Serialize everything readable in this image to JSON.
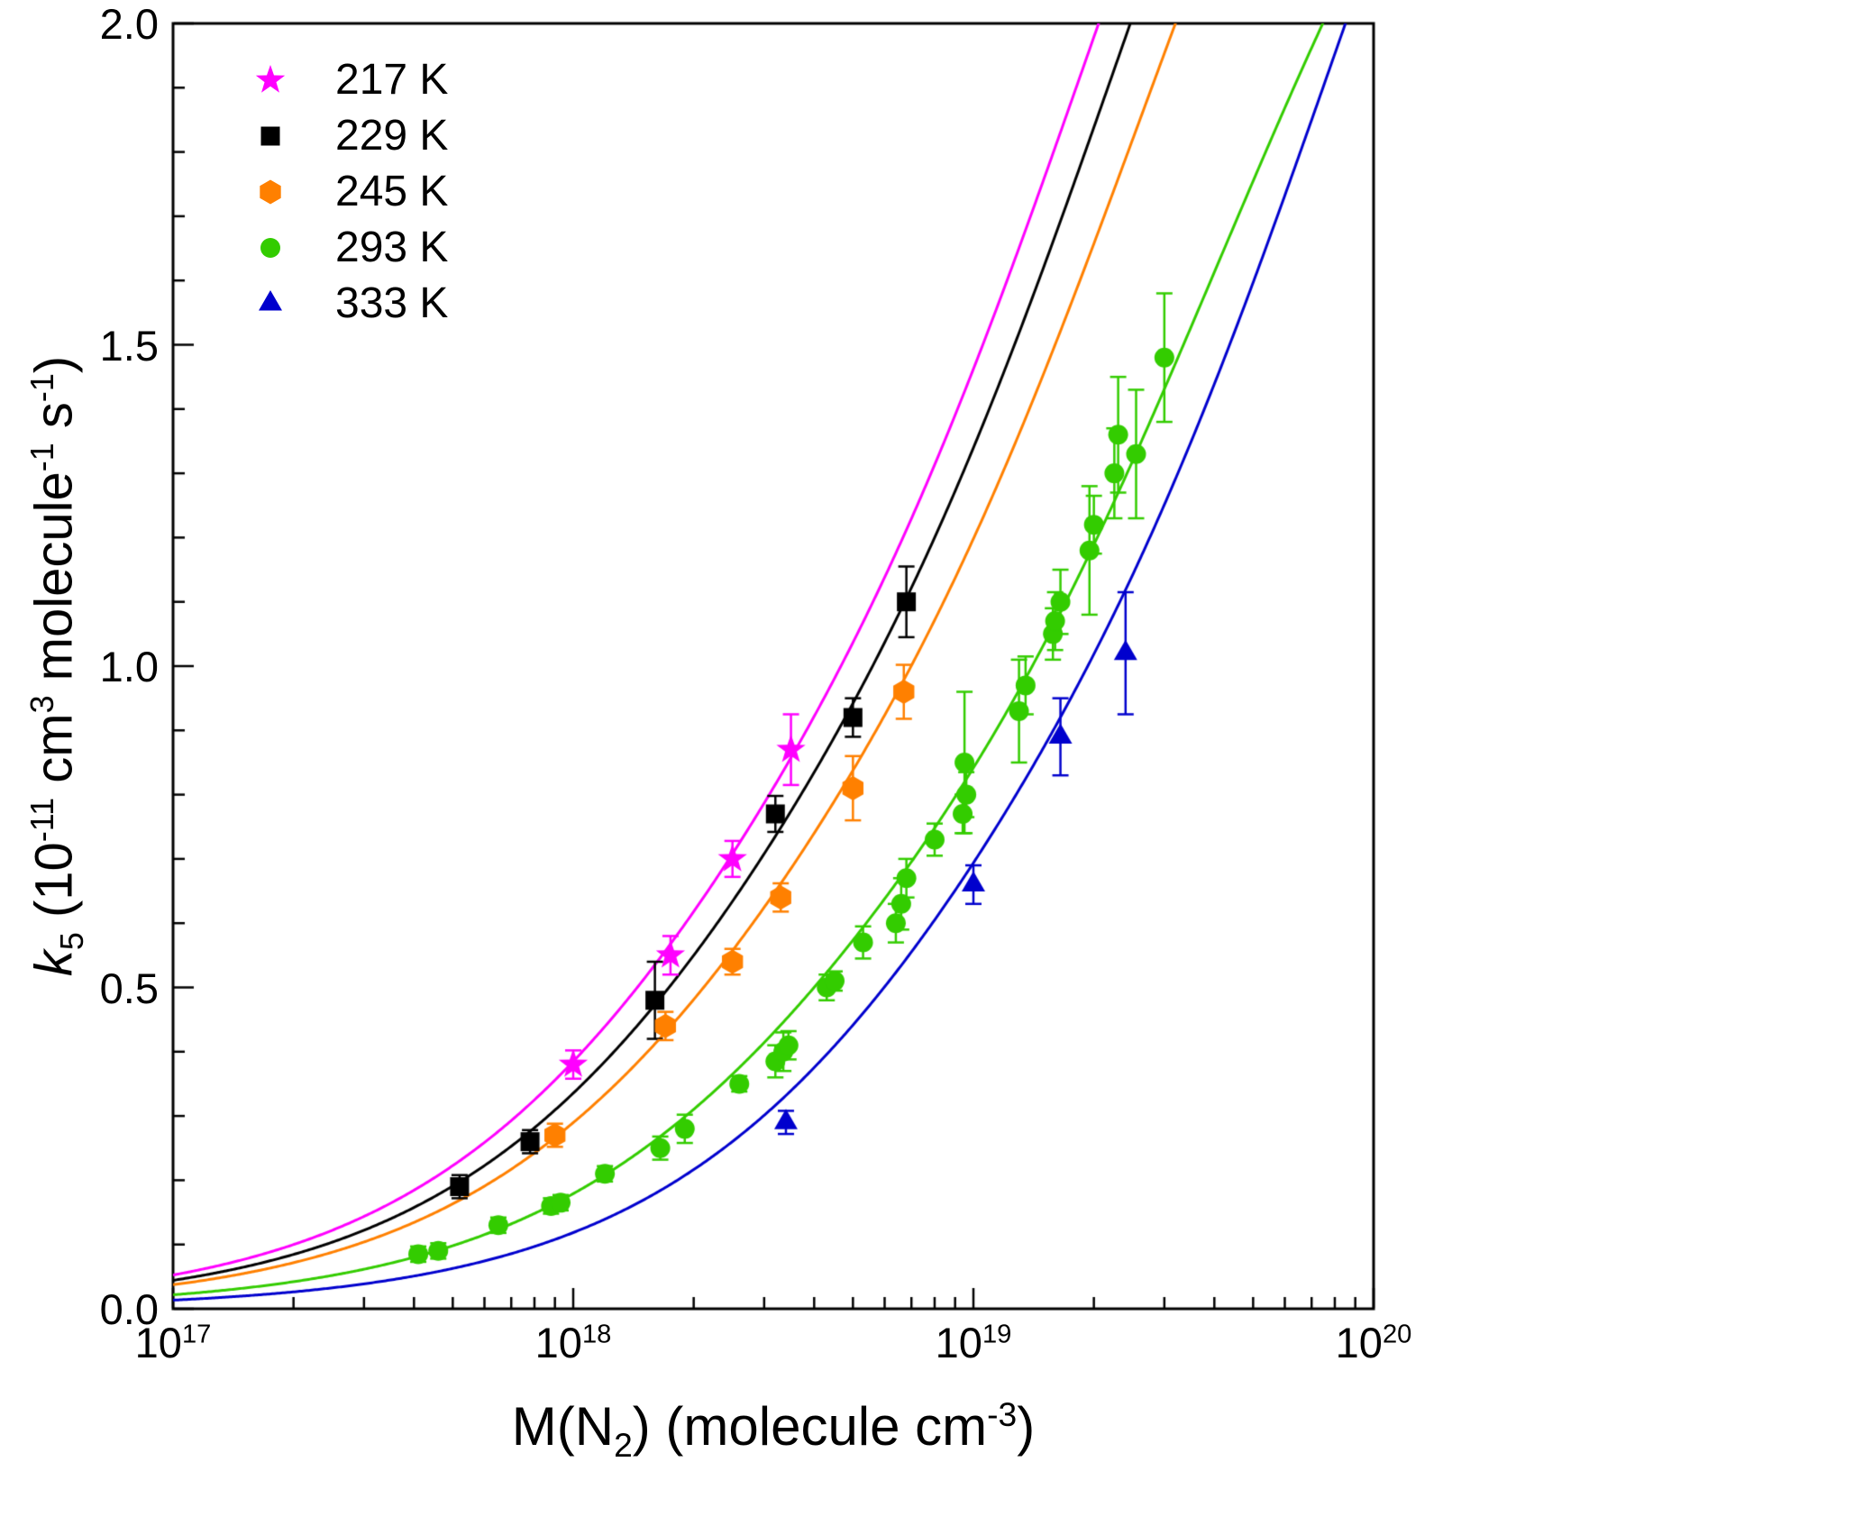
{
  "chart_data": {
    "type": "scatter",
    "title": "",
    "grid": false,
    "legend_position": "top-left",
    "x_axis": {
      "scale": "log",
      "min": 1e+17,
      "max": 1e+20,
      "tick_base": "10",
      "tick_exponents": [
        17,
        18,
        19,
        20
      ],
      "label_parts": [
        {
          "t": "M(N",
          "s": ""
        },
        {
          "t": "2",
          "s": "sub"
        },
        {
          "t": ") (molecule cm",
          "s": ""
        },
        {
          "t": "-3",
          "s": "sup"
        },
        {
          "t": ")",
          "s": ""
        }
      ]
    },
    "y_axis": {
      "min": 0.0,
      "max": 2.0,
      "tick_values": [
        0.0,
        0.5,
        1.0,
        1.5,
        2.0
      ],
      "tick_labels": [
        "0.0",
        "0.5",
        "1.0",
        "1.5",
        "2.0"
      ],
      "minor_step": 0.1,
      "label_parts": [
        {
          "t": "k",
          "s": "i"
        },
        {
          "t": "5",
          "s": "sub"
        },
        {
          "t": " (10",
          "s": ""
        },
        {
          "t": "-11",
          "s": "sup"
        },
        {
          "t": " cm",
          "s": ""
        },
        {
          "t": "3",
          "s": "sup"
        },
        {
          "t": " molecule",
          "s": ""
        },
        {
          "t": "-1",
          "s": "sup"
        },
        {
          "t": " s",
          "s": ""
        },
        {
          "t": "-1",
          "s": "sup"
        },
        {
          "t": ")",
          "s": ""
        }
      ]
    },
    "series": [
      {
        "name": "217 K",
        "temperature_K": 217,
        "color": "#ff00ff",
        "marker": "star",
        "fit": {
          "model": "troe-falloff",
          "k0_e30": 6.0,
          "kinf_e11": 4.0,
          "Fc": 0.6
        },
        "points": [
          [
            1e+18,
            0.38,
            0.022
          ],
          [
            1.75e+18,
            0.55,
            0.03
          ],
          [
            2.5e+18,
            0.7,
            0.028
          ],
          [
            3.5e+18,
            0.87,
            0.055
          ]
        ]
      },
      {
        "name": "229 K",
        "temperature_K": 229,
        "color": "#000000",
        "marker": "square",
        "fit": {
          "model": "troe-falloff",
          "k0_e30": 5.0,
          "kinf_e11": 4.0,
          "Fc": 0.6
        },
        "points": [
          [
            5.2e+17,
            0.19,
            0.018
          ],
          [
            7.8e+17,
            0.26,
            0.018
          ],
          [
            1.6e+18,
            0.48,
            0.06
          ],
          [
            3.2e+18,
            0.77,
            0.028
          ],
          [
            5e+18,
            0.92,
            0.03
          ],
          [
            6.8e+18,
            1.1,
            0.055
          ]
        ]
      },
      {
        "name": "245 K",
        "temperature_K": 245,
        "color": "#ff8000",
        "marker": "hexagon",
        "fit": {
          "model": "troe-falloff",
          "k0_e30": 4.2,
          "kinf_e11": 3.8,
          "Fc": 0.6
        },
        "points": [
          [
            9e+17,
            0.27,
            0.018
          ],
          [
            1.7e+18,
            0.44,
            0.022
          ],
          [
            2.5e+18,
            0.54,
            0.02
          ],
          [
            3.3e+18,
            0.64,
            0.022
          ],
          [
            5e+18,
            0.81,
            0.05
          ],
          [
            6.7e+18,
            0.96,
            0.042
          ]
        ]
      },
      {
        "name": "293 K",
        "temperature_K": 293,
        "color": "#33cc00",
        "marker": "circle",
        "fit": {
          "model": "troe-falloff",
          "k0_e30": 2.4,
          "kinf_e11": 3.3,
          "Fc": 0.6
        },
        "points": [
          [
            4.1e+17,
            0.085,
            0.012
          ],
          [
            4.6e+17,
            0.09,
            0.012
          ],
          [
            6.5e+17,
            0.13,
            0.012
          ],
          [
            8.8e+17,
            0.16,
            0.012
          ],
          [
            9.3e+17,
            0.165,
            0.012
          ],
          [
            1.2e+18,
            0.21,
            0.012
          ],
          [
            1.65e+18,
            0.25,
            0.018
          ],
          [
            1.9e+18,
            0.28,
            0.022
          ],
          [
            2.6e+18,
            0.35,
            0.012
          ],
          [
            3.2e+18,
            0.385,
            0.025
          ],
          [
            3.35e+18,
            0.4,
            0.03
          ],
          [
            3.45e+18,
            0.41,
            0.022
          ],
          [
            4.3e+18,
            0.5,
            0.02
          ],
          [
            4.5e+18,
            0.51,
            0.015
          ],
          [
            5.3e+18,
            0.57,
            0.025
          ],
          [
            6.4e+18,
            0.6,
            0.03
          ],
          [
            6.6e+18,
            0.63,
            0.04
          ],
          [
            6.8e+18,
            0.67,
            0.03
          ],
          [
            8e+18,
            0.73,
            0.025
          ],
          [
            9.4e+18,
            0.77,
            0.03
          ],
          [
            9.6e+18,
            0.8,
            0.035
          ],
          [
            9.5e+18,
            0.85,
            0.11
          ],
          [
            1.3e+19,
            0.93,
            0.08
          ],
          [
            1.35e+19,
            0.97,
            0.045
          ],
          [
            1.58e+19,
            1.05,
            0.04
          ],
          [
            1.6e+19,
            1.07,
            0.045
          ],
          [
            1.65e+19,
            1.1,
            0.05
          ],
          [
            1.95e+19,
            1.18,
            0.1
          ],
          [
            2e+19,
            1.22,
            0.045
          ],
          [
            2.25e+19,
            1.3,
            0.07
          ],
          [
            2.3e+19,
            1.36,
            0.09
          ],
          [
            2.55e+19,
            1.33,
            0.1
          ],
          [
            3e+19,
            1.48,
            0.1
          ]
        ]
      },
      {
        "name": "333 K",
        "temperature_K": 333,
        "color": "#0000cd",
        "marker": "triangle-up",
        "fit": {
          "model": "troe-falloff",
          "k0_e30": 1.45,
          "kinf_e11": 4.0,
          "Fc": 0.6
        },
        "points": [
          [
            3.4e+18,
            0.29,
            0.018
          ],
          [
            1e+19,
            0.66,
            0.03
          ],
          [
            1.65e+19,
            0.89,
            0.06
          ],
          [
            2.4e+19,
            1.02,
            0.095
          ]
        ]
      }
    ]
  },
  "colors": {
    "frame": "#000000",
    "background": "#ffffff"
  }
}
